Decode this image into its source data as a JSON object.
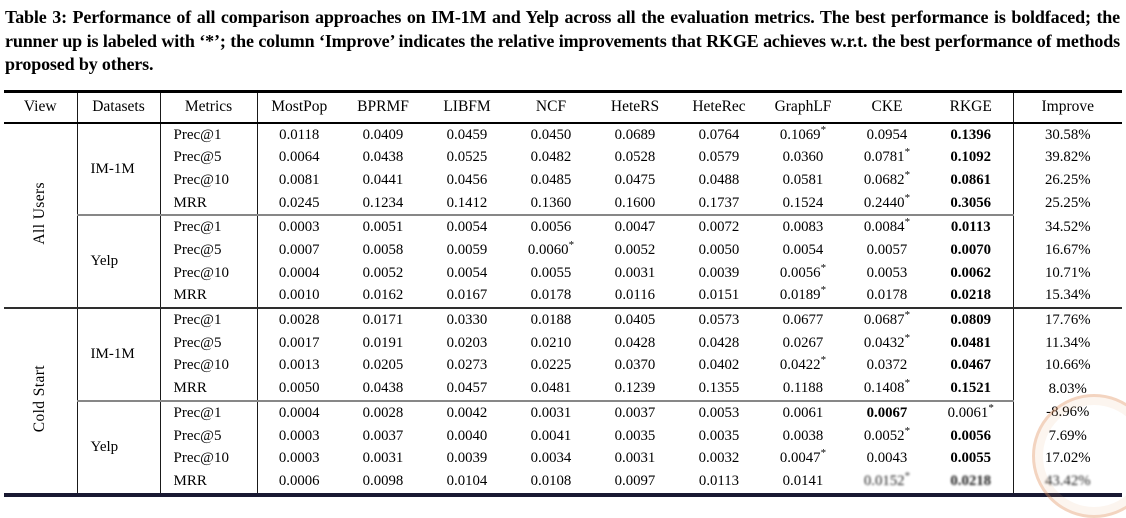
{
  "caption": "Table 3: Performance of all comparison approaches on IM-1M and Yelp across all the evaluation metrics. The best performance is boldfaced; the runner up is labeled with ‘*’; the column ‘Improve’ indicates the relative improvements that RKGE achieves w.r.t. the best performance of methods proposed by others.",
  "colors": {
    "rule_black": "#000000",
    "group_divider_gray": "#878787",
    "bottom_rule": "#191932",
    "watermark_tint": "#e09462"
  },
  "table": {
    "headers": [
      "View",
      "Datasets",
      "Metrics",
      "MostPop",
      "BPRMF",
      "LIBFM",
      "NCF",
      "HeteRS",
      "HeteRec",
      "GraphLF",
      "CKE",
      "RKGE",
      "Improve"
    ],
    "views": [
      {
        "label": "All Users",
        "datasets": [
          {
            "label": "IM-1M",
            "rows": [
              {
                "metric": "Prec@1",
                "values": [
                  "0.0118",
                  "0.0409",
                  "0.0459",
                  "0.0450",
                  "0.0689",
                  "0.0764",
                  "0.1069*",
                  "0.0954",
                  "0.1396"
                ],
                "bold": 8,
                "improve": "30.58%"
              },
              {
                "metric": "Prec@5",
                "values": [
                  "0.0064",
                  "0.0438",
                  "0.0525",
                  "0.0482",
                  "0.0528",
                  "0.0579",
                  "0.0360",
                  "0.0781*",
                  "0.1092"
                ],
                "bold": 8,
                "improve": "39.82%"
              },
              {
                "metric": "Prec@10",
                "values": [
                  "0.0081",
                  "0.0441",
                  "0.0456",
                  "0.0485",
                  "0.0475",
                  "0.0488",
                  "0.0581",
                  "0.0682*",
                  "0.0861"
                ],
                "bold": 8,
                "improve": "26.25%"
              },
              {
                "metric": "MRR",
                "values": [
                  "0.0245",
                  "0.1234",
                  "0.1412",
                  "0.1360",
                  "0.1600",
                  "0.1737",
                  "0.1524",
                  "0.2440*",
                  "0.3056"
                ],
                "bold": 8,
                "improve": "25.25%"
              }
            ]
          },
          {
            "label": "Yelp",
            "rows": [
              {
                "metric": "Prec@1",
                "values": [
                  "0.0003",
                  "0.0051",
                  "0.0054",
                  "0.0056",
                  "0.0047",
                  "0.0072",
                  "0.0083",
                  "0.0084*",
                  "0.0113"
                ],
                "bold": 8,
                "improve": "34.52%"
              },
              {
                "metric": "Prec@5",
                "values": [
                  "0.0007",
                  "0.0058",
                  "0.0059",
                  "0.0060*",
                  "0.0052",
                  "0.0050",
                  "0.0054",
                  "0.0057",
                  "0.0070"
                ],
                "bold": 8,
                "improve": "16.67%"
              },
              {
                "metric": "Prec@10",
                "values": [
                  "0.0004",
                  "0.0052",
                  "0.0054",
                  "0.0055",
                  "0.0031",
                  "0.0039",
                  "0.0056*",
                  "0.0053",
                  "0.0062"
                ],
                "bold": 8,
                "improve": "10.71%"
              },
              {
                "metric": "MRR",
                "values": [
                  "0.0010",
                  "0.0162",
                  "0.0167",
                  "0.0178",
                  "0.0116",
                  "0.0151",
                  "0.0189*",
                  "0.0178",
                  "0.0218"
                ],
                "bold": 8,
                "improve": "15.34%"
              }
            ]
          }
        ]
      },
      {
        "label": "Cold Start",
        "datasets": [
          {
            "label": "IM-1M",
            "rows": [
              {
                "metric": "Prec@1",
                "values": [
                  "0.0028",
                  "0.0171",
                  "0.0330",
                  "0.0188",
                  "0.0405",
                  "0.0573",
                  "0.0677",
                  "0.0687*",
                  "0.0809"
                ],
                "bold": 8,
                "improve": "17.76%"
              },
              {
                "metric": "Prec@5",
                "values": [
                  "0.0017",
                  "0.0191",
                  "0.0203",
                  "0.0210",
                  "0.0428",
                  "0.0428",
                  "0.0267",
                  "0.0432*",
                  "0.0481"
                ],
                "bold": 8,
                "improve": "11.34%"
              },
              {
                "metric": "Prec@10",
                "values": [
                  "0.0013",
                  "0.0205",
                  "0.0273",
                  "0.0225",
                  "0.0370",
                  "0.0402",
                  "0.0422*",
                  "0.0372",
                  "0.0467"
                ],
                "bold": 8,
                "improve": "10.66%"
              },
              {
                "metric": "MRR",
                "values": [
                  "0.0050",
                  "0.0438",
                  "0.0457",
                  "0.0481",
                  "0.1239",
                  "0.1355",
                  "0.1188",
                  "0.1408*",
                  "0.1521"
                ],
                "bold": 8,
                "improve": "8.03%"
              }
            ]
          },
          {
            "label": "Yelp",
            "rows": [
              {
                "metric": "Prec@1",
                "values": [
                  "0.0004",
                  "0.0028",
                  "0.0042",
                  "0.0031",
                  "0.0037",
                  "0.0053",
                  "0.0061",
                  "0.0067",
                  "0.0061*"
                ],
                "bold": 7,
                "improve": "-8.96%"
              },
              {
                "metric": "Prec@5",
                "values": [
                  "0.0003",
                  "0.0037",
                  "0.0040",
                  "0.0041",
                  "0.0035",
                  "0.0035",
                  "0.0038",
                  "0.0052*",
                  "0.0056"
                ],
                "bold": 8,
                "improve": "7.69%"
              },
              {
                "metric": "Prec@10",
                "values": [
                  "0.0003",
                  "0.0031",
                  "0.0039",
                  "0.0034",
                  "0.0031",
                  "0.0032",
                  "0.0047*",
                  "0.0043",
                  "0.0055"
                ],
                "bold": 8,
                "improve": "17.02%"
              },
              {
                "metric": "MRR",
                "values": [
                  "0.0006",
                  "0.0098",
                  "0.0104",
                  "0.0108",
                  "0.0097",
                  "0.0113",
                  "0.0141",
                  "0.0152*",
                  "0.0218"
                ],
                "bold": 8,
                "improve": "43.42%",
                "garbled": [
                  7,
                  8,
                  "improve"
                ]
              }
            ]
          }
        ]
      }
    ]
  }
}
